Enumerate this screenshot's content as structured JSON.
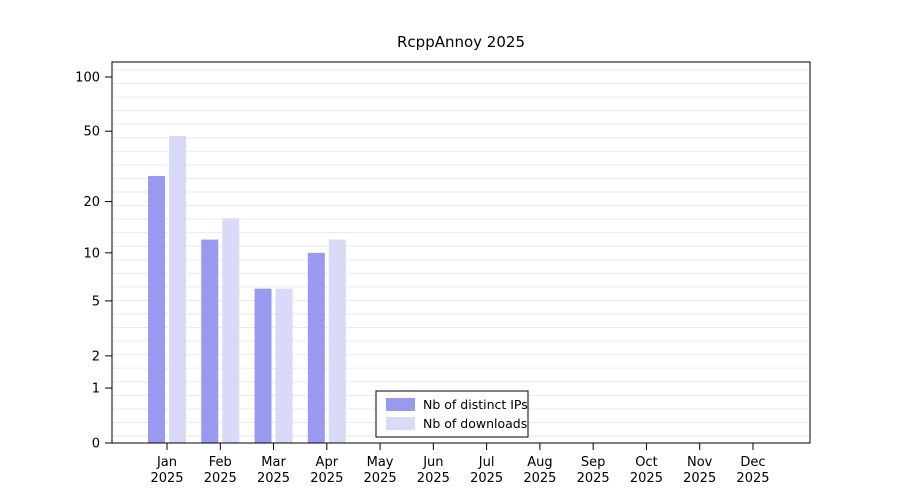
{
  "chart_data": {
    "type": "bar",
    "title": "RcppAnnoy 2025",
    "categories": [
      "Jan",
      "Feb",
      "Mar",
      "Apr",
      "May",
      "Jun",
      "Jul",
      "Aug",
      "Sep",
      "Oct",
      "Nov",
      "Dec"
    ],
    "year_label": "2025",
    "series": [
      {
        "name": "Nb of distinct IPs",
        "color": "#9999f0",
        "values": [
          28,
          12,
          6,
          10,
          null,
          null,
          null,
          null,
          null,
          null,
          null,
          null
        ]
      },
      {
        "name": "Nb of downloads",
        "color": "#d9d9f8",
        "values": [
          47,
          16,
          6,
          12,
          null,
          null,
          null,
          null,
          null,
          null,
          null,
          null
        ]
      }
    ],
    "yscale": "log1p",
    "yticks": [
      0,
      1,
      2,
      5,
      10,
      20,
      50,
      100
    ],
    "ylim": [
      0,
      115
    ],
    "xlabel": "",
    "ylabel": "",
    "grid": "horizontal-light",
    "legend_position": "bottom-center-inside"
  },
  "colors": {
    "background": "#ffffff",
    "grid": "#e7e7e7",
    "axis": "#000000",
    "text": "#000000",
    "legend_border": "#000000"
  }
}
